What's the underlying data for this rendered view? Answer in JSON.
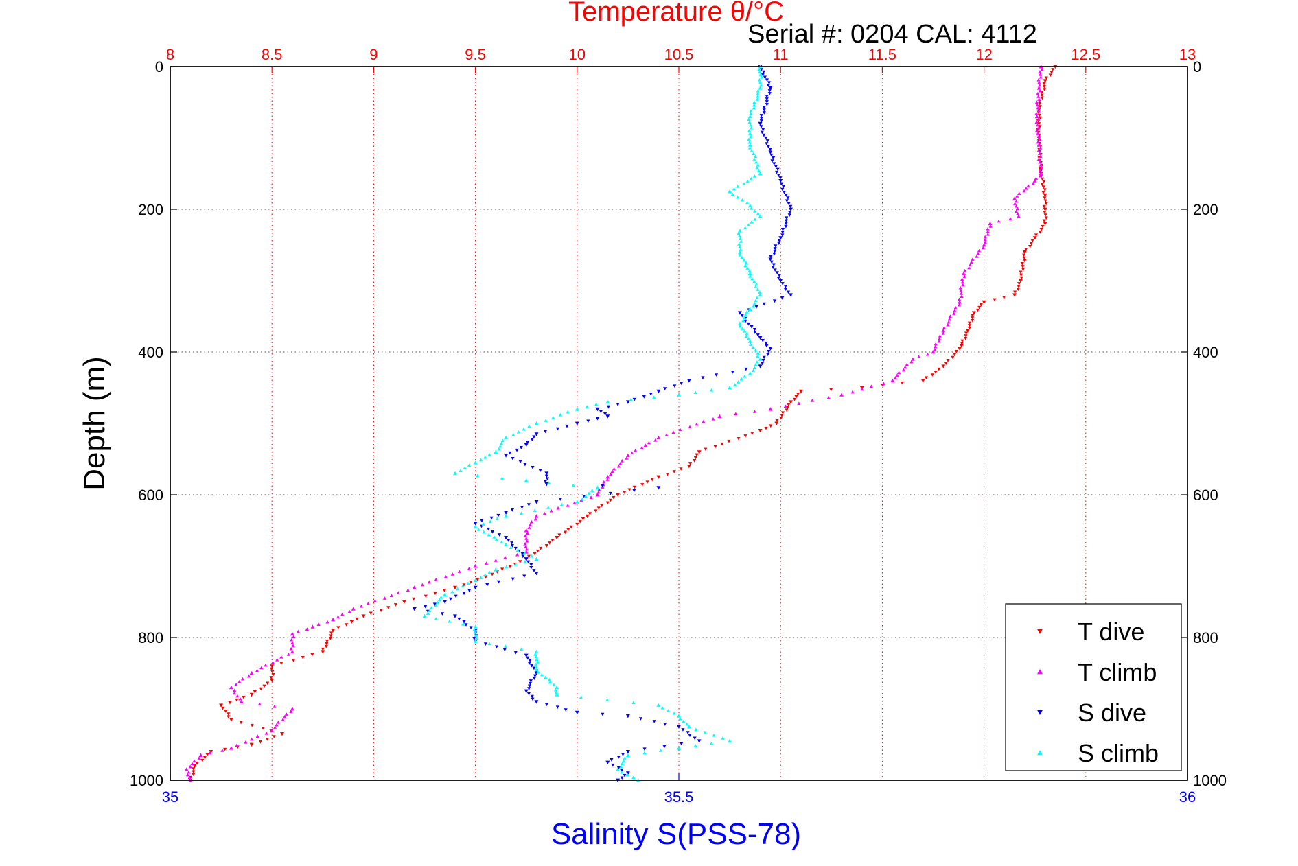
{
  "chart_data": {
    "type": "scatter",
    "title": "Temperature θ/°C",
    "annotation": "Serial #: 0204  CAL: 4112",
    "xlabel": "Salinity S(PSS-78)",
    "ylabel": "Depth (m)",
    "temperature_axis": {
      "label": "Temperature θ/°C",
      "lim": [
        8,
        13
      ],
      "ticks": [
        "8",
        "8.5",
        "9",
        "9.5",
        "10",
        "10.5",
        "11",
        "11.5",
        "12",
        "12.5",
        "13"
      ],
      "color": "#ff0000"
    },
    "salinity_axis": {
      "label": "Salinity S(PSS-78)",
      "lim": [
        35,
        36
      ],
      "ticks": [
        "35",
        "35.5",
        "36"
      ],
      "color": "#0000ff"
    },
    "depth_axis": {
      "lim": [
        0,
        1000
      ],
      "reversed": true,
      "ticks": [
        "0",
        "200",
        "400",
        "600",
        "800",
        "1000"
      ]
    },
    "grid": true,
    "legend_position": "bottom-right",
    "series": [
      {
        "name": "T dive",
        "axis": "temperature",
        "color": "#ff0000",
        "marker": "triangle-down",
        "points": [
          [
            12.35,
            0
          ],
          [
            12.3,
            20
          ],
          [
            12.27,
            60
          ],
          [
            12.27,
            100
          ],
          [
            12.28,
            150
          ],
          [
            12.3,
            180
          ],
          [
            12.3,
            200
          ],
          [
            12.3,
            220
          ],
          [
            12.25,
            240
          ],
          [
            12.2,
            260
          ],
          [
            12.18,
            300
          ],
          [
            12.15,
            320
          ],
          [
            12.0,
            330
          ],
          [
            11.95,
            345
          ],
          [
            11.92,
            370
          ],
          [
            11.88,
            395
          ],
          [
            11.8,
            420
          ],
          [
            11.7,
            440
          ],
          [
            11.4,
            450
          ],
          [
            11.1,
            455
          ],
          [
            11.05,
            470
          ],
          [
            10.98,
            500
          ],
          [
            10.9,
            510
          ],
          [
            10.6,
            540
          ],
          [
            10.55,
            560
          ],
          [
            10.4,
            575
          ],
          [
            10.2,
            600
          ],
          [
            10.05,
            630
          ],
          [
            9.9,
            660
          ],
          [
            9.75,
            690
          ],
          [
            9.55,
            715
          ],
          [
            9.4,
            730
          ],
          [
            9.15,
            750
          ],
          [
            8.95,
            770
          ],
          [
            8.8,
            790
          ],
          [
            8.75,
            820
          ],
          [
            8.5,
            840
          ],
          [
            8.5,
            860
          ],
          [
            8.4,
            880
          ],
          [
            8.25,
            895
          ],
          [
            8.3,
            915
          ],
          [
            8.55,
            935
          ],
          [
            8.4,
            950
          ],
          [
            8.2,
            960
          ],
          [
            8.12,
            980
          ],
          [
            8.1,
            1000
          ]
        ]
      },
      {
        "name": "T climb",
        "axis": "temperature",
        "color": "#ff00ff",
        "marker": "triangle-up",
        "points": [
          [
            12.28,
            0
          ],
          [
            12.27,
            30
          ],
          [
            12.26,
            70
          ],
          [
            12.27,
            110
          ],
          [
            12.28,
            150
          ],
          [
            12.25,
            160
          ],
          [
            12.15,
            185
          ],
          [
            12.17,
            210
          ],
          [
            12.03,
            220
          ],
          [
            12.0,
            250
          ],
          [
            11.9,
            290
          ],
          [
            11.88,
            330
          ],
          [
            11.8,
            370
          ],
          [
            11.75,
            400
          ],
          [
            11.65,
            410
          ],
          [
            11.55,
            440
          ],
          [
            11.3,
            460
          ],
          [
            10.95,
            480
          ],
          [
            10.7,
            490
          ],
          [
            10.4,
            520
          ],
          [
            10.25,
            545
          ],
          [
            10.15,
            575
          ],
          [
            10.1,
            600
          ],
          [
            9.8,
            630
          ],
          [
            9.75,
            650
          ],
          [
            9.75,
            680
          ],
          [
            9.5,
            700
          ],
          [
            9.2,
            730
          ],
          [
            8.9,
            760
          ],
          [
            8.8,
            775
          ],
          [
            8.7,
            785
          ],
          [
            8.6,
            795
          ],
          [
            8.6,
            820
          ],
          [
            8.4,
            850
          ],
          [
            8.3,
            870
          ],
          [
            8.35,
            890
          ],
          [
            8.6,
            900
          ],
          [
            8.5,
            930
          ],
          [
            8.3,
            955
          ],
          [
            8.15,
            965
          ],
          [
            8.08,
            985
          ],
          [
            8.1,
            1000
          ]
        ]
      },
      {
        "name": "S dive",
        "axis": "salinity",
        "color": "#0000ff",
        "marker": "triangle-down",
        "points": [
          [
            35.58,
            0
          ],
          [
            35.59,
            30
          ],
          [
            35.58,
            80
          ],
          [
            35.59,
            120
          ],
          [
            35.6,
            160
          ],
          [
            35.61,
            200
          ],
          [
            35.6,
            240
          ],
          [
            35.59,
            270
          ],
          [
            35.6,
            300
          ],
          [
            35.61,
            320
          ],
          [
            35.56,
            345
          ],
          [
            35.58,
            380
          ],
          [
            35.59,
            395
          ],
          [
            35.58,
            420
          ],
          [
            35.51,
            440
          ],
          [
            35.48,
            455
          ],
          [
            35.45,
            470
          ],
          [
            35.42,
            480
          ],
          [
            35.43,
            490
          ],
          [
            35.4,
            500
          ],
          [
            35.36,
            515
          ],
          [
            35.35,
            530
          ],
          [
            35.33,
            545
          ],
          [
            35.37,
            570
          ],
          [
            35.37,
            585
          ],
          [
            35.48,
            590
          ],
          [
            35.36,
            610
          ],
          [
            35.33,
            625
          ],
          [
            35.3,
            640
          ],
          [
            35.33,
            660
          ],
          [
            35.35,
            690
          ],
          [
            35.36,
            710
          ],
          [
            35.3,
            730
          ],
          [
            35.27,
            750
          ],
          [
            35.24,
            760
          ],
          [
            35.28,
            770
          ],
          [
            35.3,
            790
          ],
          [
            35.3,
            805
          ],
          [
            35.35,
            825
          ],
          [
            35.36,
            850
          ],
          [
            35.35,
            875
          ],
          [
            35.36,
            890
          ],
          [
            35.4,
            905
          ],
          [
            35.45,
            910
          ],
          [
            35.5,
            925
          ],
          [
            35.52,
            945
          ],
          [
            35.45,
            960
          ],
          [
            35.43,
            975
          ],
          [
            35.45,
            990
          ],
          [
            35.44,
            1000
          ]
        ]
      },
      {
        "name": "S climb",
        "axis": "salinity",
        "color": "#00ffff",
        "marker": "triangle-up",
        "points": [
          [
            35.58,
            0
          ],
          [
            35.58,
            30
          ],
          [
            35.57,
            70
          ],
          [
            35.57,
            110
          ],
          [
            35.58,
            150
          ],
          [
            35.55,
            175
          ],
          [
            35.57,
            195
          ],
          [
            35.58,
            210
          ],
          [
            35.56,
            230
          ],
          [
            35.56,
            260
          ],
          [
            35.57,
            290
          ],
          [
            35.58,
            320
          ],
          [
            35.57,
            340
          ],
          [
            35.56,
            360
          ],
          [
            35.57,
            385
          ],
          [
            35.58,
            410
          ],
          [
            35.57,
            430
          ],
          [
            35.55,
            450
          ],
          [
            35.5,
            460
          ],
          [
            35.43,
            470
          ],
          [
            35.4,
            480
          ],
          [
            35.36,
            500
          ],
          [
            35.33,
            520
          ],
          [
            35.32,
            540
          ],
          [
            35.3,
            555
          ],
          [
            35.28,
            570
          ],
          [
            35.35,
            580
          ],
          [
            35.42,
            590
          ],
          [
            35.4,
            610
          ],
          [
            35.33,
            630
          ],
          [
            35.3,
            645
          ],
          [
            35.33,
            670
          ],
          [
            35.36,
            690
          ],
          [
            35.32,
            705
          ],
          [
            35.3,
            720
          ],
          [
            35.27,
            740
          ],
          [
            35.25,
            770
          ],
          [
            35.3,
            785
          ],
          [
            35.3,
            805
          ],
          [
            35.36,
            820
          ],
          [
            35.36,
            845
          ],
          [
            35.38,
            870
          ],
          [
            35.38,
            880
          ],
          [
            35.48,
            895
          ],
          [
            35.5,
            910
          ],
          [
            35.51,
            925
          ],
          [
            35.55,
            945
          ],
          [
            35.5,
            955
          ],
          [
            35.45,
            965
          ],
          [
            35.44,
            985
          ],
          [
            35.46,
            1000
          ]
        ]
      }
    ]
  }
}
